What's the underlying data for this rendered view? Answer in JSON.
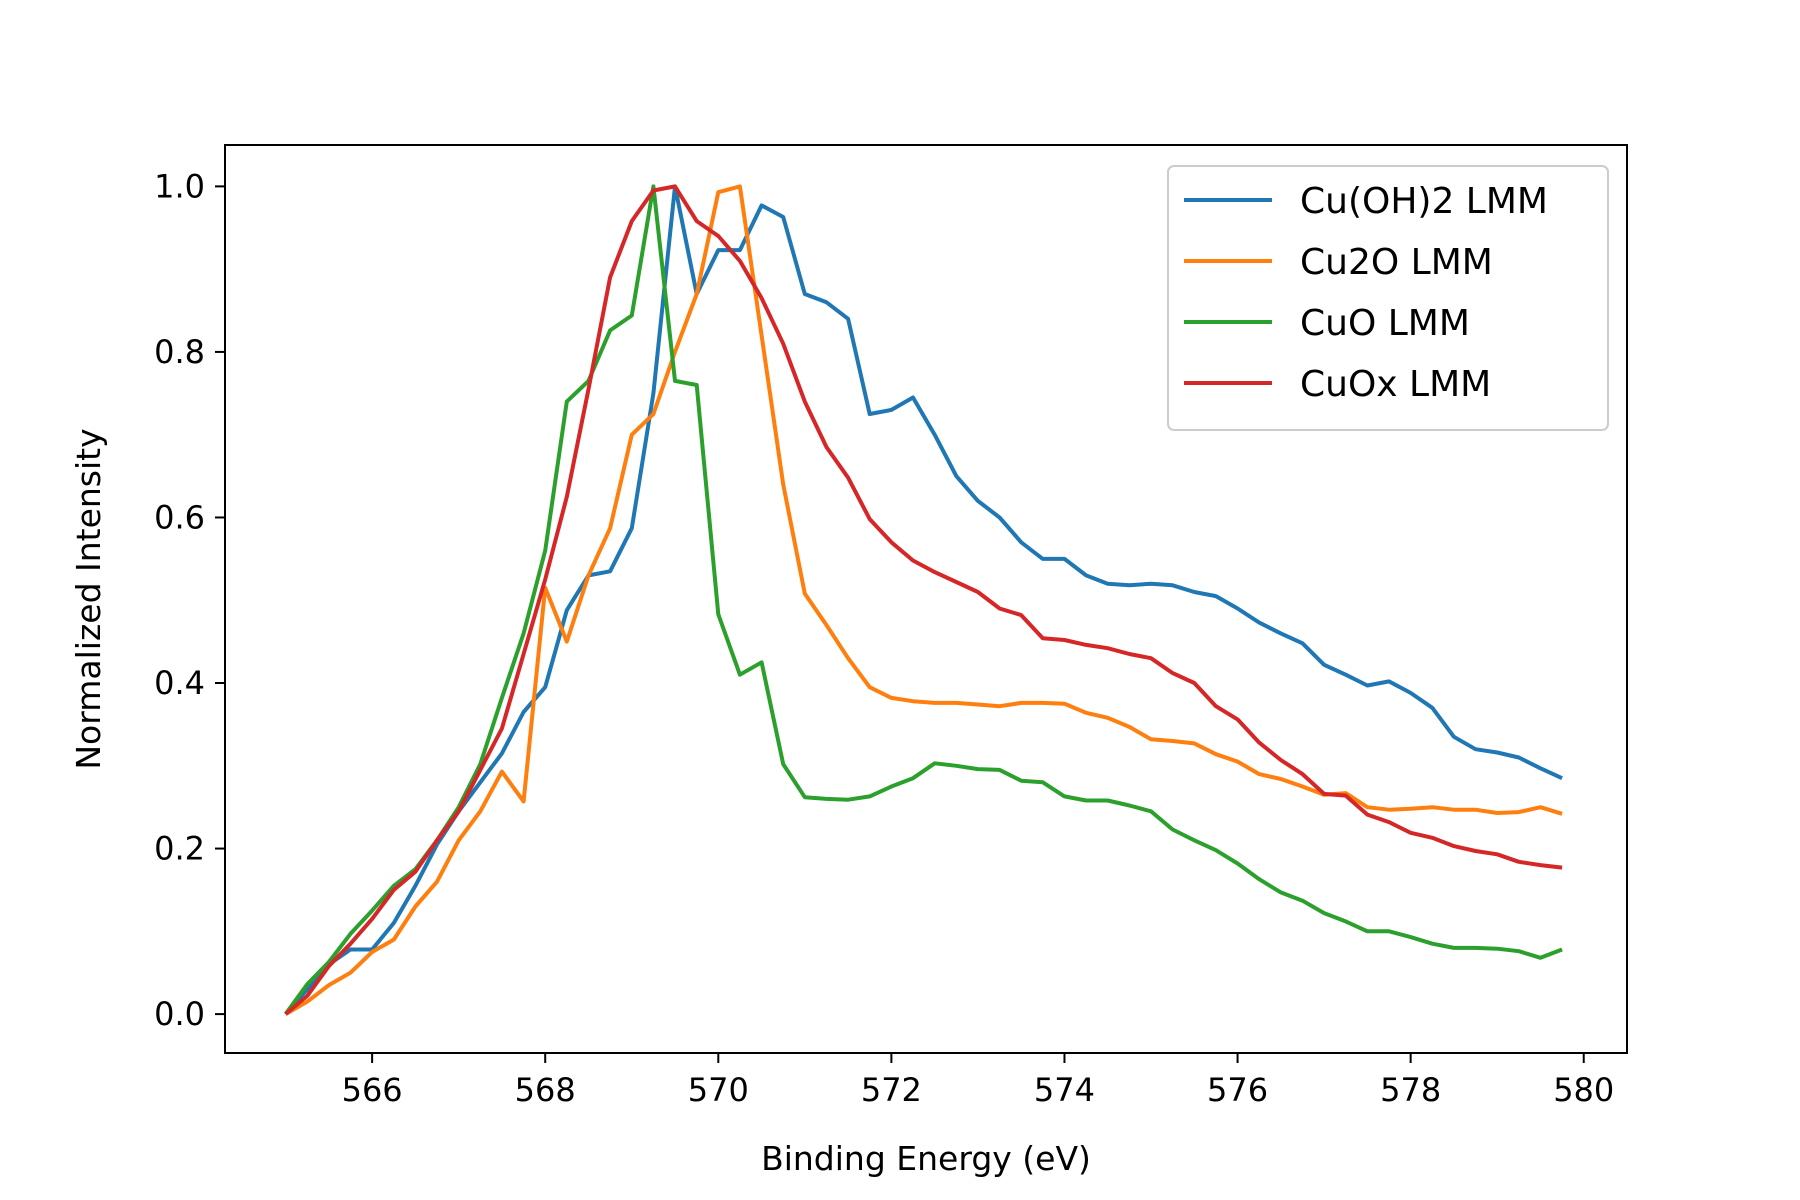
{
  "chart_data": {
    "type": "line",
    "title": "",
    "xlabel": "Binding Energy (eV)",
    "ylabel": "Normalized Intensity",
    "xlim": [
      564.3,
      580.5
    ],
    "ylim": [
      -0.047,
      1.05
    ],
    "xticks": [
      "566",
      "568",
      "570",
      "572",
      "574",
      "576",
      "578",
      "580"
    ],
    "yticks": [
      "0.0",
      "0.2",
      "0.4",
      "0.6",
      "0.8",
      "1.0"
    ],
    "grid": false,
    "legend_position": "top-right",
    "x": [
      565.0,
      565.25,
      565.5,
      565.75,
      566.0,
      566.25,
      566.5,
      566.75,
      567.0,
      567.25,
      567.5,
      567.75,
      568.0,
      568.25,
      568.5,
      568.75,
      569.0,
      569.25,
      569.5,
      569.75,
      570.0,
      570.25,
      570.5,
      570.75,
      571.0,
      571.25,
      571.5,
      571.75,
      572.0,
      572.25,
      572.5,
      572.75,
      573.0,
      573.25,
      573.5,
      573.75,
      574.0,
      574.25,
      574.5,
      574.75,
      575.0,
      575.25,
      575.5,
      575.75,
      576.0,
      576.25,
      576.5,
      576.75,
      577.0,
      577.25,
      577.5,
      577.75,
      578.0,
      578.25,
      578.5,
      578.75,
      579.0,
      579.25,
      579.5,
      579.75
    ],
    "series": [
      {
        "name": "Cu(OH)2 LMM",
        "color": "#1f77b4",
        "values": [
          0.0,
          0.03,
          0.06,
          0.078,
          0.078,
          0.11,
          0.155,
          0.205,
          0.245,
          0.28,
          0.315,
          0.365,
          0.395,
          0.488,
          0.53,
          0.535,
          0.587,
          0.75,
          1.0,
          0.87,
          0.923,
          0.923,
          0.977,
          0.963,
          0.87,
          0.86,
          0.84,
          0.725,
          0.73,
          0.745,
          0.7,
          0.65,
          0.62,
          0.6,
          0.57,
          0.55,
          0.55,
          0.53,
          0.52,
          0.518,
          0.52,
          0.518,
          0.51,
          0.505,
          0.49,
          0.473,
          0.46,
          0.448,
          0.422,
          0.41,
          0.397,
          0.402,
          0.388,
          0.37,
          0.335,
          0.32,
          0.316,
          0.31,
          0.297,
          0.285
        ]
      },
      {
        "name": "Cu2O LMM",
        "color": "#ff7f0e",
        "values": [
          0.0,
          0.015,
          0.035,
          0.05,
          0.075,
          0.09,
          0.13,
          0.16,
          0.21,
          0.245,
          0.293,
          0.257,
          0.515,
          0.45,
          0.53,
          0.587,
          0.7,
          0.725,
          0.8,
          0.87,
          0.993,
          1.0,
          0.82,
          0.64,
          0.508,
          0.47,
          0.43,
          0.395,
          0.382,
          0.378,
          0.376,
          0.376,
          0.374,
          0.372,
          0.376,
          0.376,
          0.375,
          0.364,
          0.358,
          0.347,
          0.332,
          0.33,
          0.327,
          0.314,
          0.305,
          0.29,
          0.284,
          0.275,
          0.265,
          0.267,
          0.25,
          0.247,
          0.248,
          0.25,
          0.247,
          0.247,
          0.243,
          0.244,
          0.25,
          0.242
        ]
      },
      {
        "name": "CuO LMM",
        "color": "#2ca02c",
        "values": [
          0.0,
          0.036,
          0.063,
          0.097,
          0.125,
          0.155,
          0.175,
          0.21,
          0.25,
          0.302,
          0.382,
          0.46,
          0.56,
          0.74,
          0.765,
          0.826,
          0.844,
          1.0,
          0.765,
          0.76,
          0.483,
          0.41,
          0.425,
          0.302,
          0.262,
          0.26,
          0.259,
          0.263,
          0.275,
          0.285,
          0.303,
          0.3,
          0.296,
          0.295,
          0.282,
          0.28,
          0.263,
          0.258,
          0.258,
          0.252,
          0.245,
          0.223,
          0.21,
          0.198,
          0.182,
          0.163,
          0.147,
          0.137,
          0.122,
          0.112,
          0.1,
          0.1,
          0.093,
          0.085,
          0.08,
          0.08,
          0.079,
          0.076,
          0.068,
          0.078
        ]
      },
      {
        "name": "CuOx LMM",
        "color": "#d62728",
        "values": [
          0.0,
          0.022,
          0.058,
          0.085,
          0.115,
          0.15,
          0.172,
          0.21,
          0.245,
          0.295,
          0.345,
          0.435,
          0.525,
          0.625,
          0.755,
          0.89,
          0.958,
          0.995,
          1.0,
          0.958,
          0.94,
          0.91,
          0.865,
          0.81,
          0.74,
          0.685,
          0.648,
          0.598,
          0.57,
          0.548,
          0.534,
          0.522,
          0.51,
          0.49,
          0.482,
          0.454,
          0.452,
          0.446,
          0.442,
          0.435,
          0.43,
          0.412,
          0.4,
          0.372,
          0.356,
          0.328,
          0.307,
          0.29,
          0.266,
          0.264,
          0.241,
          0.232,
          0.219,
          0.213,
          0.203,
          0.197,
          0.193,
          0.184,
          0.18,
          0.177
        ]
      }
    ]
  }
}
